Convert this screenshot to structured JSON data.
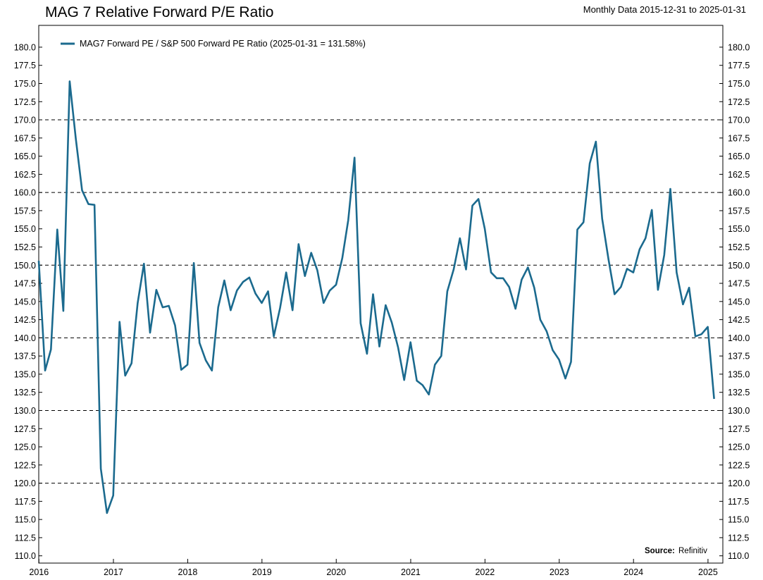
{
  "title": "MAG 7 Relative Forward P/E Ratio",
  "subtitle": "Monthly Data 2015-12-31 to 2025-01-31",
  "colors": {
    "series": "#1b6a8e",
    "grid": "#000000",
    "axis": "#000000"
  },
  "chart_data": {
    "type": "line",
    "title": "MAG 7 Relative Forward P/E Ratio",
    "subtitle": "Monthly Data 2015-12-31 to 2025-01-31",
    "xlabel": "",
    "ylabel": "",
    "xlim": [
      "2015-12-31",
      "2025-03-15"
    ],
    "ylim": [
      109,
      183
    ],
    "y_ticks": [
      "110.0",
      "112.5",
      "115.0",
      "117.5",
      "120.0",
      "122.5",
      "125.0",
      "127.5",
      "130.0",
      "132.5",
      "135.0",
      "137.5",
      "140.0",
      "142.5",
      "145.0",
      "147.5",
      "150.0",
      "152.5",
      "155.0",
      "157.5",
      "160.0",
      "162.5",
      "165.0",
      "167.5",
      "170.0",
      "172.5",
      "175.0",
      "177.5",
      "180.0"
    ],
    "x_ticks": [
      "2016",
      "2017",
      "2018",
      "2019",
      "2020",
      "2021",
      "2022",
      "2023",
      "2024",
      "2025"
    ],
    "grid": {
      "y_dashed_at": [
        120,
        130,
        140,
        150,
        160,
        170
      ],
      "style": "dashed"
    },
    "legend": {
      "position": "top-left"
    },
    "series": [
      {
        "name": "MAG7 Forward PE / S&P 500 Forward PE Ratio (2025-01-31 = 131.58%)",
        "color": "#1b6a8e",
        "x": [
          "2015-12-31",
          "2016-01-31",
          "2016-02-29",
          "2016-03-31",
          "2016-04-30",
          "2016-05-31",
          "2016-06-30",
          "2016-07-31",
          "2016-08-31",
          "2016-09-30",
          "2016-10-31",
          "2016-11-30",
          "2016-12-31",
          "2017-01-31",
          "2017-02-28",
          "2017-03-31",
          "2017-04-30",
          "2017-05-31",
          "2017-06-30",
          "2017-07-31",
          "2017-08-31",
          "2017-09-30",
          "2017-10-31",
          "2017-11-30",
          "2017-12-31",
          "2018-01-31",
          "2018-02-28",
          "2018-03-31",
          "2018-04-30",
          "2018-05-31",
          "2018-06-30",
          "2018-07-31",
          "2018-08-31",
          "2018-09-30",
          "2018-10-31",
          "2018-11-30",
          "2018-12-31",
          "2019-01-31",
          "2019-02-28",
          "2019-03-31",
          "2019-04-30",
          "2019-05-31",
          "2019-06-30",
          "2019-07-31",
          "2019-08-31",
          "2019-09-30",
          "2019-10-31",
          "2019-11-30",
          "2019-12-31",
          "2020-01-31",
          "2020-02-29",
          "2020-03-31",
          "2020-04-30",
          "2020-05-31",
          "2020-06-30",
          "2020-07-31",
          "2020-08-31",
          "2020-09-30",
          "2020-10-31",
          "2020-11-30",
          "2020-12-31",
          "2021-01-31",
          "2021-02-28",
          "2021-03-31",
          "2021-04-30",
          "2021-05-31",
          "2021-06-30",
          "2021-07-31",
          "2021-08-31",
          "2021-09-30",
          "2021-10-31",
          "2021-11-30",
          "2021-12-31",
          "2022-01-31",
          "2022-02-28",
          "2022-03-31",
          "2022-04-30",
          "2022-05-31",
          "2022-06-30",
          "2022-07-31",
          "2022-08-31",
          "2022-09-30",
          "2022-10-31",
          "2022-11-30",
          "2022-12-31",
          "2023-01-31",
          "2023-02-28",
          "2023-03-31",
          "2023-04-30",
          "2023-05-31",
          "2023-06-30",
          "2023-07-31",
          "2023-08-31",
          "2023-09-30",
          "2023-10-31",
          "2023-11-30",
          "2023-12-31",
          "2024-01-31",
          "2024-02-29",
          "2024-03-31",
          "2024-04-30",
          "2024-05-31",
          "2024-06-30",
          "2024-07-31",
          "2024-08-31",
          "2024-09-30",
          "2024-10-31",
          "2024-11-30",
          "2024-12-31",
          "2025-01-31"
        ],
        "values": [
          150.6,
          135.5,
          138.4,
          154.9,
          143.7,
          175.3,
          167.4,
          160.3,
          158.4,
          158.3,
          122.0,
          115.9,
          118.3,
          142.2,
          134.8,
          136.5,
          144.8,
          150.2,
          140.7,
          146.6,
          144.2,
          144.4,
          141.7,
          135.6,
          136.3,
          150.3,
          139.3,
          136.9,
          135.5,
          144.2,
          147.9,
          143.8,
          146.5,
          147.7,
          148.3,
          146.1,
          144.8,
          146.4,
          140.2,
          144.1,
          149.0,
          143.8,
          152.9,
          148.5,
          151.7,
          149.3,
          144.8,
          146.5,
          147.3,
          151.0,
          156.2,
          164.8,
          142.0,
          137.8,
          146.0,
          138.8,
          144.5,
          142.1,
          138.7,
          134.2,
          139.4,
          134.1,
          133.5,
          132.2,
          136.3,
          137.5,
          146.4,
          149.4,
          153.7,
          149.4,
          158.2,
          159.1,
          155.0,
          149.0,
          148.2,
          148.2,
          147.0,
          144.0,
          148.0,
          149.7,
          146.9,
          142.5,
          140.9,
          138.3,
          137.0,
          134.4,
          136.7,
          154.9,
          155.9,
          164.0,
          167.0,
          156.4,
          150.8,
          146.0,
          147.0,
          149.5,
          149.0,
          152.2,
          153.7,
          157.6,
          146.6,
          151.4,
          160.5,
          149.0,
          144.6,
          146.9,
          140.2,
          140.5,
          141.5,
          131.6
        ]
      }
    ]
  },
  "source": {
    "label": "Source:",
    "value": "Refinitiv"
  }
}
